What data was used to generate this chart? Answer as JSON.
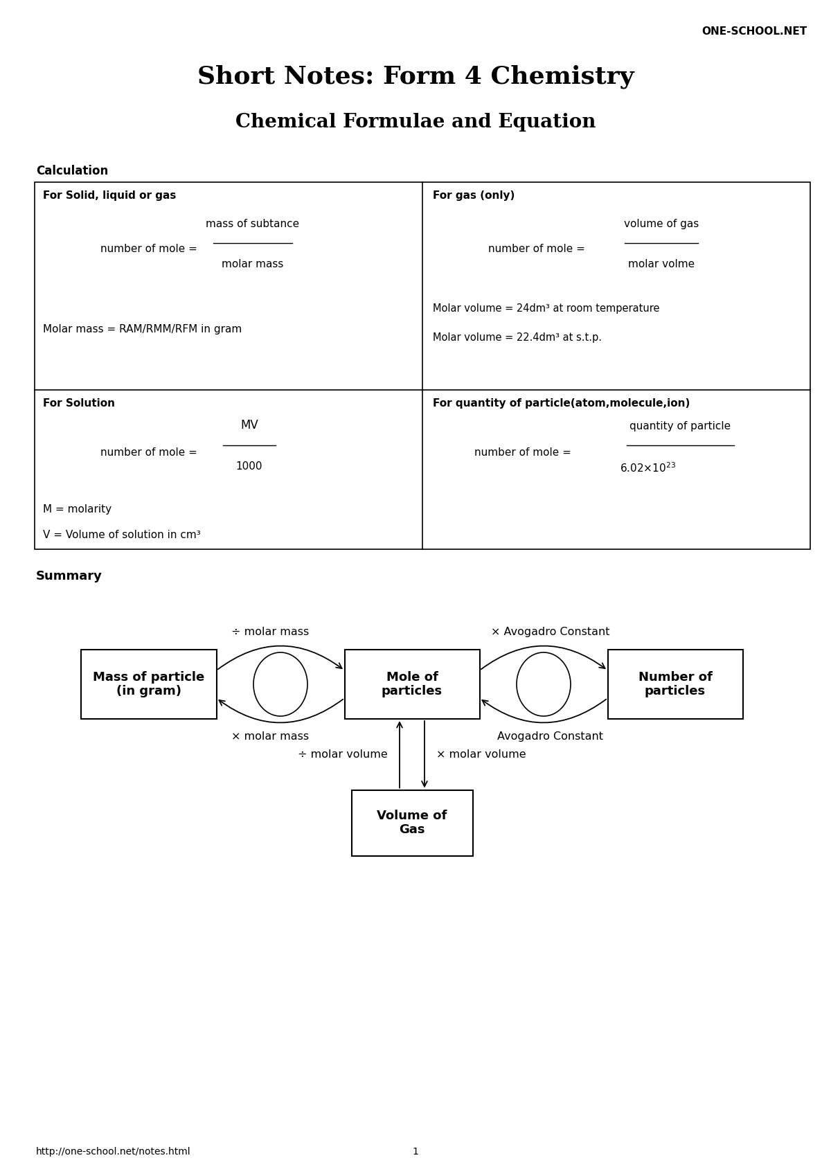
{
  "title1": "Short Notes: Form 4 Chemistry",
  "title2": "Chemical Formulae and Equation",
  "watermark": "ONE-SCHOOL.NET",
  "section1": "Calculation",
  "summary_label": "Summary",
  "footer_url": "http://one-school.net/notes.html",
  "footer_page": "1",
  "table": {
    "cell_tl_header": "For Solid, liquid or gas",
    "cell_tr_header": "For gas (only)",
    "cell_bl_header": "For Solution",
    "cell_br_header": "For quantity of particle(atom,molecule,ion)",
    "molar_mass_line": "Molar mass = RAM/RMM/RFM in gram",
    "molar_vol_line1": "Molar volume = 24dm³ at room temperature",
    "molar_vol_line2": "Molar volume = 22.4dm³ at s.t.p.",
    "m_equals": "M = molarity",
    "v_equals": "V = Volume of solution in cm³"
  },
  "diagram": {
    "box_mass": "Mass of particle\n(in gram)",
    "box_mole": "Mole of\nparticles",
    "box_number": "Number of\nparticles",
    "box_volume": "Volume of\nGas",
    "label_div_molar_mass": "÷ molar mass",
    "label_times_molar_mass": "× molar mass",
    "label_times_avogadro": "× Avogadro Constant",
    "label_avogadro": "Avogadro Constant",
    "label_div_molar_vol": "÷ molar volume",
    "label_times_molar_vol": "× molar volume"
  },
  "bg_color": "#ffffff",
  "text_color": "#000000"
}
